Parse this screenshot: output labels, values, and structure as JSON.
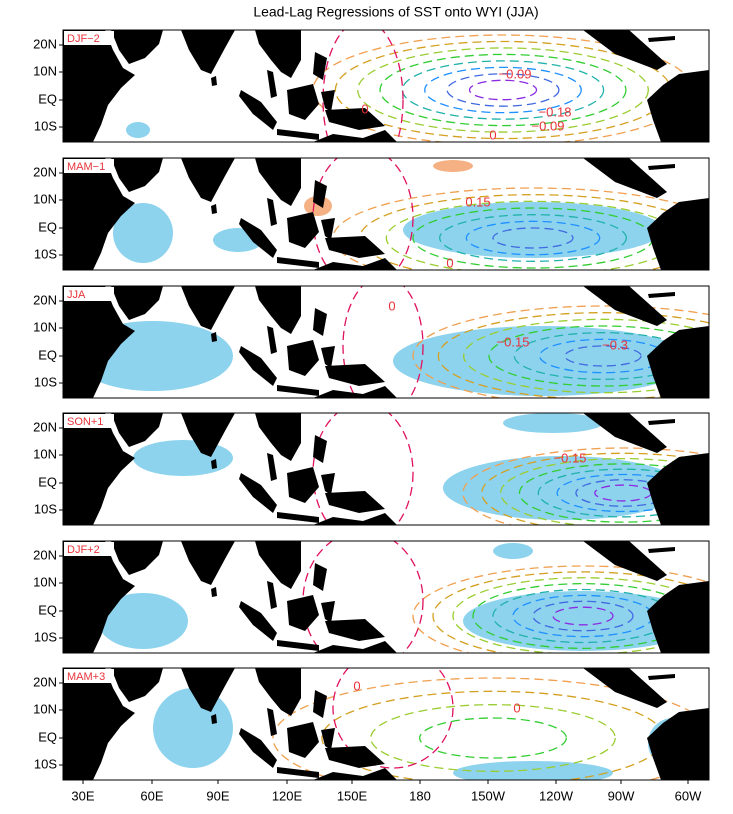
{
  "title": "Lead-Lag Regressions of SST onto WYI (JJA)",
  "lat_labels": [
    "20N",
    "10N",
    "EQ",
    "10S"
  ],
  "lon_labels": [
    "30E",
    "60E",
    "90E",
    "120E",
    "150E",
    "180",
    "150W",
    "120W",
    "90W",
    "60W"
  ],
  "panels": [
    {
      "label": "DJF−2",
      "contour_labels": [
        "−0.09",
        "0",
        "−0.18",
        "−0.09",
        "0"
      ]
    },
    {
      "label": "MAM−1",
      "contour_labels": [
        "0.15",
        "0"
      ]
    },
    {
      "label": "JJA",
      "contour_labels": [
        "0",
        "−0.15",
        "−0.3"
      ]
    },
    {
      "label": "SON+1",
      "contour_labels": [
        "−0.15"
      ]
    },
    {
      "label": "DJF+2",
      "contour_labels": []
    },
    {
      "label": "MAM+3",
      "contour_labels": [
        "0",
        "0"
      ]
    }
  ]
}
